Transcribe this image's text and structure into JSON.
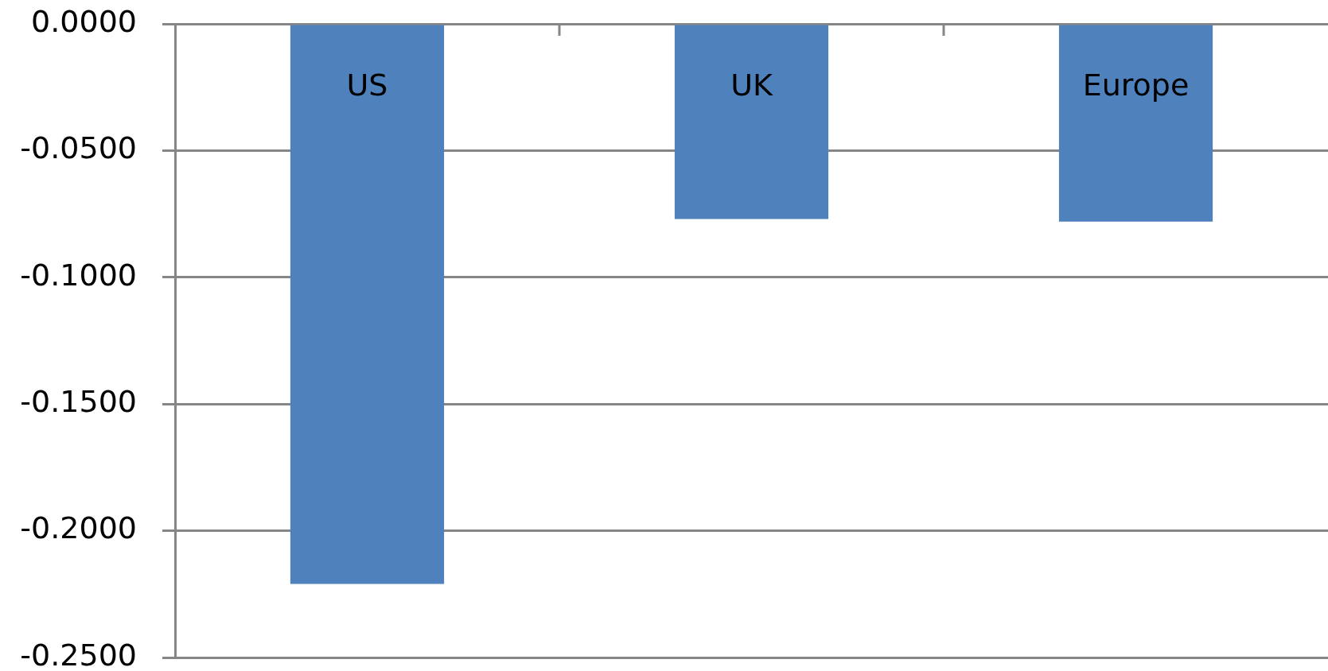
{
  "chart_data": {
    "type": "bar",
    "categories": [
      "US",
      "UK",
      "Europe"
    ],
    "values": [
      -0.221,
      -0.077,
      -0.078
    ],
    "color": "#4f81bd",
    "ylim": [
      -0.25,
      0
    ],
    "yticks": [
      {
        "value": 0,
        "label": "0.0000"
      },
      {
        "value": -0.05,
        "label": "-0.0500"
      },
      {
        "value": -0.1,
        "label": "-0.1000"
      },
      {
        "value": -0.15,
        "label": "-0.1500"
      },
      {
        "value": -0.2,
        "label": "-0.2000"
      },
      {
        "value": -0.25,
        "label": "-0.2500"
      }
    ],
    "grid": "y"
  }
}
